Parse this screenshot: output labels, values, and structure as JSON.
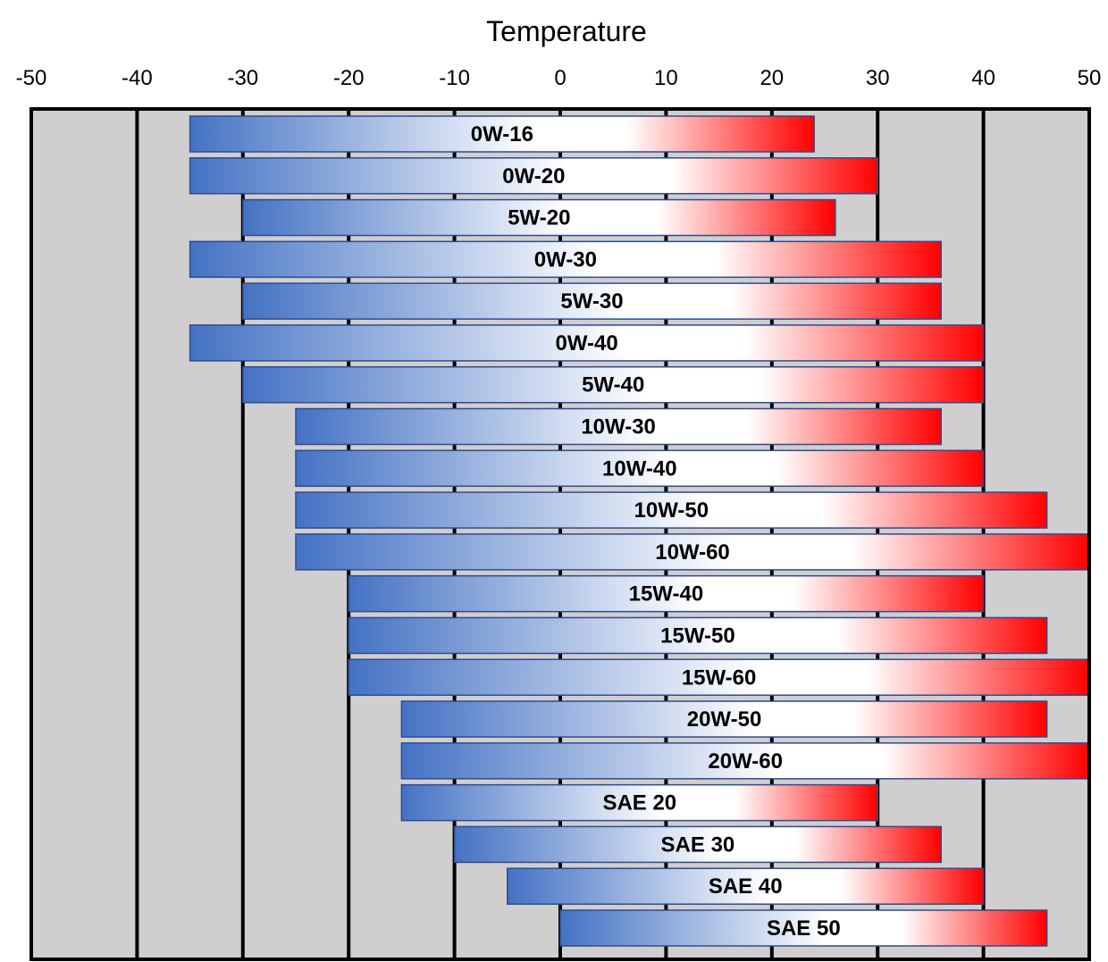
{
  "chart_data": {
    "type": "bar",
    "orientation": "horizontal-range",
    "title": "",
    "xlabel": "Temperature",
    "ylabel": "",
    "xlim": [
      -50,
      50
    ],
    "x_ticks": [
      -50,
      -40,
      -30,
      -20,
      -10,
      0,
      10,
      20,
      30,
      40,
      50
    ],
    "grid": "vertical lines at every 10",
    "legend": "none",
    "categories": [
      "0W-16",
      "0W-20",
      "5W-20",
      "0W-30",
      "5W-30",
      "0W-40",
      "5W-40",
      "10W-30",
      "10W-40",
      "10W-50",
      "10W-60",
      "15W-40",
      "15W-50",
      "15W-60",
      "20W-50",
      "20W-60",
      "SAE 20",
      "SAE 30",
      "SAE 40",
      "SAE 50"
    ],
    "ranges": [
      [
        -35,
        24
      ],
      [
        -35,
        30
      ],
      [
        -30,
        26
      ],
      [
        -35,
        36
      ],
      [
        -30,
        36
      ],
      [
        -35,
        40
      ],
      [
        -30,
        40
      ],
      [
        -25,
        36
      ],
      [
        -25,
        40
      ],
      [
        -25,
        46
      ],
      [
        -25,
        50
      ],
      [
        -20,
        40
      ],
      [
        -20,
        46
      ],
      [
        -20,
        50
      ],
      [
        -15,
        46
      ],
      [
        -15,
        50
      ],
      [
        -15,
        30
      ],
      [
        -10,
        36
      ],
      [
        -5,
        40
      ],
      [
        0,
        46
      ]
    ],
    "colors": {
      "cold": "#4472C4",
      "neutral": "#FFFFFF",
      "hot": "#FF0000",
      "bar_border": "#2F4B8F",
      "plot_background": "#D0CECE",
      "grid_line": "#000000"
    }
  }
}
